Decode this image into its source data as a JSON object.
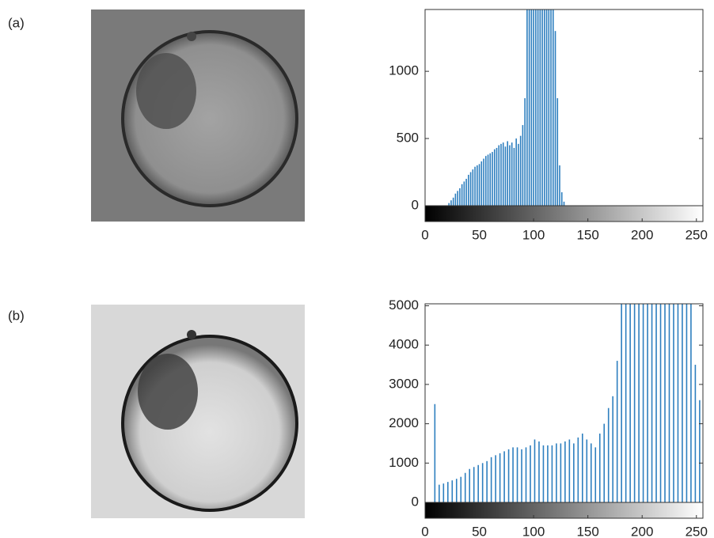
{
  "chart_data": [
    {
      "type": "bar",
      "panel_label": "(a)",
      "color": "#2e7fbf",
      "x": [
        22,
        24,
        26,
        28,
        30,
        32,
        34,
        36,
        38,
        40,
        42,
        44,
        46,
        48,
        50,
        52,
        54,
        56,
        58,
        60,
        62,
        64,
        66,
        68,
        70,
        72,
        74,
        76,
        78,
        80,
        82,
        84,
        86,
        88,
        90,
        92,
        94,
        96,
        98,
        100,
        102,
        104,
        106,
        108,
        110,
        112,
        114,
        116,
        118,
        120,
        122,
        124,
        126,
        128
      ],
      "values": [
        20,
        40,
        60,
        90,
        110,
        130,
        160,
        180,
        200,
        230,
        250,
        270,
        290,
        300,
        310,
        330,
        350,
        370,
        380,
        390,
        400,
        420,
        430,
        450,
        460,
        470,
        440,
        480,
        450,
        470,
        430,
        500,
        460,
        520,
        600,
        800,
        1460,
        1460,
        1460,
        1460,
        1460,
        1460,
        1460,
        1460,
        1460,
        1460,
        1460,
        1460,
        1460,
        1300,
        800,
        300,
        100,
        30
      ],
      "xlim": [
        0,
        256
      ],
      "xticks": [
        0,
        50,
        100,
        150,
        200,
        250
      ],
      "ylim": [
        0,
        1460
      ],
      "yticks": [
        0,
        500,
        1000
      ]
    },
    {
      "type": "bar",
      "panel_label": "(b)",
      "color": "#2e7fbf",
      "x": [
        9,
        13,
        17,
        21,
        25,
        29,
        33,
        37,
        41,
        45,
        49,
        53,
        57,
        61,
        65,
        69,
        73,
        77,
        81,
        85,
        89,
        93,
        97,
        101,
        105,
        109,
        113,
        117,
        121,
        125,
        129,
        133,
        137,
        141,
        145,
        149,
        153,
        157,
        161,
        165,
        169,
        173,
        177,
        181,
        185,
        189,
        193,
        197,
        201,
        205,
        209,
        213,
        217,
        221,
        225,
        229,
        233,
        237,
        241,
        245,
        249,
        253
      ],
      "values": [
        2500,
        450,
        480,
        520,
        560,
        600,
        650,
        750,
        850,
        900,
        950,
        1000,
        1050,
        1150,
        1200,
        1250,
        1300,
        1350,
        1400,
        1400,
        1350,
        1400,
        1450,
        1600,
        1550,
        1450,
        1450,
        1450,
        1500,
        1500,
        1550,
        1600,
        1500,
        1650,
        1750,
        1600,
        1500,
        1400,
        1750,
        2000,
        2400,
        2700,
        3600,
        5050,
        5050,
        5050,
        5050,
        5050,
        5050,
        5050,
        5050,
        5050,
        5050,
        5050,
        5050,
        5050,
        5050,
        5050,
        5050,
        5050,
        3500,
        2600
      ],
      "xlim": [
        0,
        256
      ],
      "xticks": [
        0,
        50,
        100,
        150,
        200,
        250
      ],
      "ylim": [
        0,
        5050
      ],
      "yticks": [
        0,
        1000,
        2000,
        3000,
        4000,
        5000
      ]
    }
  ]
}
